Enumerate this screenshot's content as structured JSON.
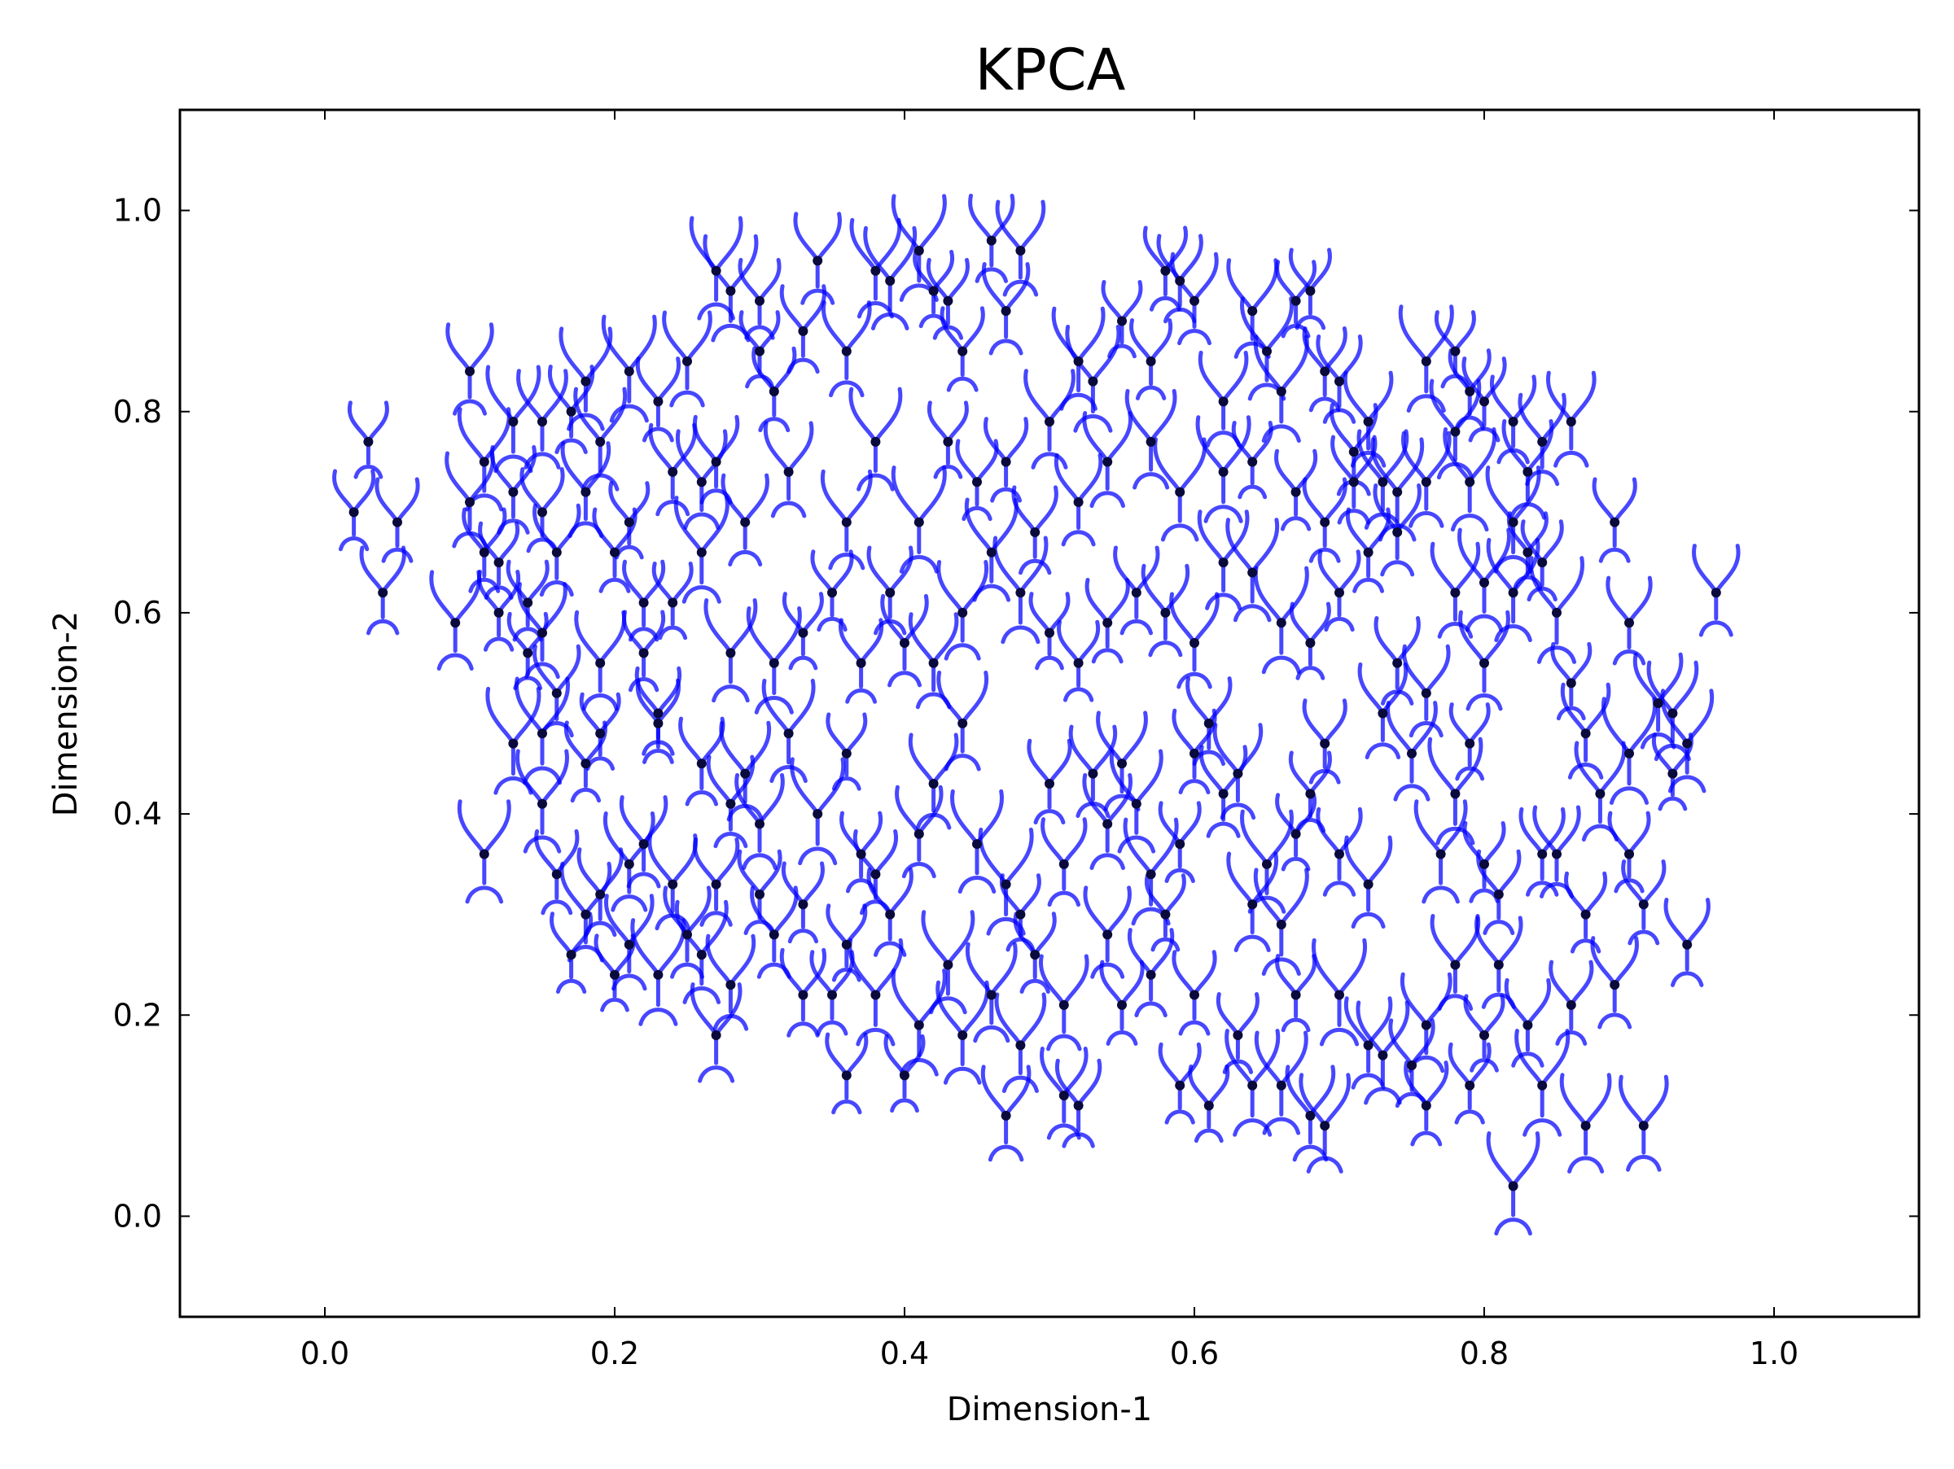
{
  "chart_data": {
    "type": "scatter",
    "title": "KPCA",
    "xlabel": "Dimension-1",
    "ylabel": "Dimension-2",
    "xlim": [
      -0.1,
      1.1
    ],
    "ylim": [
      -0.1,
      1.1
    ],
    "xticks": [
      "0.0",
      "0.2",
      "0.4",
      "0.6",
      "0.8",
      "1.0"
    ],
    "yticks": [
      "0.0",
      "0.2",
      "0.4",
      "0.6",
      "0.8",
      "1.0"
    ],
    "grid": false,
    "legend": "none",
    "marker_color": "#0a0a3c",
    "glyph_color": "#0000ff",
    "series": [
      {
        "marker": "dot-with-curved-glyph",
        "points": [
          [
            0.03,
            0.77
          ],
          [
            0.02,
            0.7
          ],
          [
            0.05,
            0.69
          ],
          [
            0.04,
            0.62
          ],
          [
            0.1,
            0.84
          ],
          [
            0.1,
            0.71
          ],
          [
            0.09,
            0.59
          ],
          [
            0.11,
            0.75
          ],
          [
            0.13,
            0.79
          ],
          [
            0.12,
            0.65
          ],
          [
            0.14,
            0.61
          ],
          [
            0.15,
            0.7
          ],
          [
            0.17,
            0.8
          ],
          [
            0.16,
            0.52
          ],
          [
            0.15,
            0.58
          ],
          [
            0.19,
            0.55
          ],
          [
            0.19,
            0.77
          ],
          [
            0.21,
            0.84
          ],
          [
            0.21,
            0.69
          ],
          [
            0.22,
            0.61
          ],
          [
            0.23,
            0.81
          ],
          [
            0.23,
            0.5
          ],
          [
            0.24,
            0.74
          ],
          [
            0.25,
            0.85
          ],
          [
            0.26,
            0.73
          ],
          [
            0.27,
            0.94
          ],
          [
            0.28,
            0.92
          ],
          [
            0.3,
            0.86
          ],
          [
            0.3,
            0.91
          ],
          [
            0.31,
            0.82
          ],
          [
            0.33,
            0.88
          ],
          [
            0.34,
            0.95
          ],
          [
            0.36,
            0.86
          ],
          [
            0.38,
            0.94
          ],
          [
            0.39,
            0.93
          ],
          [
            0.41,
            0.96
          ],
          [
            0.42,
            0.92
          ],
          [
            0.43,
            0.91
          ],
          [
            0.44,
            0.86
          ],
          [
            0.46,
            0.97
          ],
          [
            0.47,
            0.9
          ],
          [
            0.48,
            0.96
          ],
          [
            0.5,
            0.79
          ],
          [
            0.52,
            0.85
          ],
          [
            0.53,
            0.83
          ],
          [
            0.55,
            0.89
          ],
          [
            0.57,
            0.85
          ],
          [
            0.58,
            0.94
          ],
          [
            0.59,
            0.93
          ],
          [
            0.6,
            0.91
          ],
          [
            0.62,
            0.81
          ],
          [
            0.64,
            0.9
          ],
          [
            0.65,
            0.86
          ],
          [
            0.66,
            0.82
          ],
          [
            0.67,
            0.91
          ],
          [
            0.68,
            0.92
          ],
          [
            0.69,
            0.84
          ],
          [
            0.7,
            0.83
          ],
          [
            0.71,
            0.76
          ],
          [
            0.72,
            0.79
          ],
          [
            0.73,
            0.73
          ],
          [
            0.74,
            0.72
          ],
          [
            0.76,
            0.85
          ],
          [
            0.78,
            0.86
          ],
          [
            0.79,
            0.82
          ],
          [
            0.8,
            0.81
          ],
          [
            0.82,
            0.79
          ],
          [
            0.84,
            0.77
          ],
          [
            0.86,
            0.79
          ],
          [
            0.83,
            0.74
          ],
          [
            0.79,
            0.73
          ],
          [
            0.82,
            0.69
          ],
          [
            0.83,
            0.66
          ],
          [
            0.84,
            0.65
          ],
          [
            0.89,
            0.69
          ],
          [
            0.9,
            0.59
          ],
          [
            0.96,
            0.62
          ],
          [
            0.92,
            0.51
          ],
          [
            0.93,
            0.5
          ],
          [
            0.94,
            0.47
          ],
          [
            0.9,
            0.46
          ],
          [
            0.93,
            0.44
          ],
          [
            0.9,
            0.36
          ],
          [
            0.91,
            0.31
          ],
          [
            0.94,
            0.27
          ],
          [
            0.89,
            0.23
          ],
          [
            0.91,
            0.09
          ],
          [
            0.87,
            0.09
          ],
          [
            0.82,
            0.03
          ],
          [
            0.84,
            0.13
          ],
          [
            0.8,
            0.18
          ],
          [
            0.79,
            0.13
          ],
          [
            0.76,
            0.11
          ],
          [
            0.75,
            0.15
          ],
          [
            0.72,
            0.17
          ],
          [
            0.68,
            0.1
          ],
          [
            0.69,
            0.09
          ],
          [
            0.66,
            0.13
          ],
          [
            0.64,
            0.13
          ],
          [
            0.61,
            0.11
          ],
          [
            0.59,
            0.13
          ],
          [
            0.55,
            0.21
          ],
          [
            0.52,
            0.11
          ],
          [
            0.51,
            0.12
          ],
          [
            0.47,
            0.1
          ],
          [
            0.46,
            0.22
          ],
          [
            0.43,
            0.25
          ],
          [
            0.41,
            0.19
          ],
          [
            0.4,
            0.14
          ],
          [
            0.36,
            0.14
          ],
          [
            0.35,
            0.22
          ],
          [
            0.33,
            0.22
          ],
          [
            0.31,
            0.28
          ],
          [
            0.28,
            0.23
          ],
          [
            0.27,
            0.18
          ],
          [
            0.26,
            0.26
          ],
          [
            0.23,
            0.24
          ],
          [
            0.2,
            0.24
          ],
          [
            0.17,
            0.26
          ],
          [
            0.16,
            0.34
          ],
          [
            0.19,
            0.32
          ],
          [
            0.22,
            0.37
          ],
          [
            0.24,
            0.33
          ],
          [
            0.21,
            0.35
          ],
          [
            0.11,
            0.36
          ],
          [
            0.13,
            0.47
          ],
          [
            0.19,
            0.48
          ],
          [
            0.18,
            0.45
          ],
          [
            0.23,
            0.49
          ],
          [
            0.26,
            0.45
          ],
          [
            0.28,
            0.41
          ],
          [
            0.3,
            0.39
          ],
          [
            0.29,
            0.44
          ],
          [
            0.32,
            0.48
          ],
          [
            0.34,
            0.4
          ],
          [
            0.36,
            0.46
          ],
          [
            0.37,
            0.36
          ],
          [
            0.38,
            0.34
          ],
          [
            0.39,
            0.3
          ],
          [
            0.41,
            0.38
          ],
          [
            0.42,
            0.43
          ],
          [
            0.44,
            0.49
          ],
          [
            0.45,
            0.37
          ],
          [
            0.47,
            0.33
          ],
          [
            0.48,
            0.3
          ],
          [
            0.49,
            0.26
          ],
          [
            0.5,
            0.43
          ],
          [
            0.51,
            0.35
          ],
          [
            0.53,
            0.44
          ],
          [
            0.54,
            0.39
          ],
          [
            0.55,
            0.45
          ],
          [
            0.56,
            0.41
          ],
          [
            0.57,
            0.34
          ],
          [
            0.58,
            0.3
          ],
          [
            0.59,
            0.37
          ],
          [
            0.6,
            0.46
          ],
          [
            0.61,
            0.49
          ],
          [
            0.62,
            0.42
          ],
          [
            0.63,
            0.44
          ],
          [
            0.64,
            0.31
          ],
          [
            0.65,
            0.35
          ],
          [
            0.66,
            0.29
          ],
          [
            0.67,
            0.38
          ],
          [
            0.68,
            0.42
          ],
          [
            0.69,
            0.47
          ],
          [
            0.7,
            0.36
          ],
          [
            0.72,
            0.33
          ],
          [
            0.73,
            0.5
          ],
          [
            0.75,
            0.46
          ],
          [
            0.77,
            0.36
          ],
          [
            0.78,
            0.42
          ],
          [
            0.79,
            0.47
          ],
          [
            0.8,
            0.35
          ],
          [
            0.81,
            0.32
          ],
          [
            0.84,
            0.36
          ],
          [
            0.85,
            0.36
          ],
          [
            0.87,
            0.48
          ],
          [
            0.88,
            0.42
          ],
          [
            0.28,
            0.56
          ],
          [
            0.31,
            0.55
          ],
          [
            0.33,
            0.58
          ],
          [
            0.35,
            0.62
          ],
          [
            0.37,
            0.55
          ],
          [
            0.39,
            0.62
          ],
          [
            0.4,
            0.57
          ],
          [
            0.42,
            0.55
          ],
          [
            0.44,
            0.6
          ],
          [
            0.46,
            0.66
          ],
          [
            0.48,
            0.62
          ],
          [
            0.5,
            0.58
          ],
          [
            0.52,
            0.55
          ],
          [
            0.54,
            0.59
          ],
          [
            0.56,
            0.62
          ],
          [
            0.58,
            0.6
          ],
          [
            0.6,
            0.57
          ],
          [
            0.62,
            0.65
          ],
          [
            0.64,
            0.64
          ],
          [
            0.66,
            0.59
          ],
          [
            0.68,
            0.57
          ],
          [
            0.7,
            0.62
          ],
          [
            0.72,
            0.66
          ],
          [
            0.74,
            0.55
          ],
          [
            0.76,
            0.52
          ],
          [
            0.78,
            0.62
          ],
          [
            0.8,
            0.55
          ],
          [
            0.82,
            0.62
          ],
          [
            0.26,
            0.66
          ],
          [
            0.24,
            0.61
          ],
          [
            0.22,
            0.56
          ],
          [
            0.2,
            0.66
          ],
          [
            0.27,
            0.75
          ],
          [
            0.29,
            0.69
          ],
          [
            0.32,
            0.74
          ],
          [
            0.36,
            0.69
          ],
          [
            0.38,
            0.77
          ],
          [
            0.41,
            0.69
          ],
          [
            0.43,
            0.77
          ],
          [
            0.45,
            0.73
          ],
          [
            0.47,
            0.75
          ],
          [
            0.49,
            0.68
          ],
          [
            0.52,
            0.71
          ],
          [
            0.54,
            0.75
          ],
          [
            0.57,
            0.77
          ],
          [
            0.59,
            0.72
          ],
          [
            0.62,
            0.74
          ],
          [
            0.64,
            0.75
          ],
          [
            0.67,
            0.72
          ],
          [
            0.69,
            0.69
          ],
          [
            0.71,
            0.73
          ],
          [
            0.74,
            0.68
          ],
          [
            0.76,
            0.73
          ],
          [
            0.78,
            0.78
          ],
          [
            0.8,
            0.63
          ],
          [
            0.85,
            0.6
          ],
          [
            0.86,
            0.53
          ],
          [
            0.87,
            0.3
          ],
          [
            0.86,
            0.21
          ],
          [
            0.83,
            0.19
          ],
          [
            0.81,
            0.25
          ],
          [
            0.78,
            0.25
          ],
          [
            0.76,
            0.19
          ],
          [
            0.73,
            0.16
          ],
          [
            0.7,
            0.22
          ],
          [
            0.67,
            0.22
          ],
          [
            0.63,
            0.18
          ],
          [
            0.6,
            0.22
          ],
          [
            0.57,
            0.24
          ],
          [
            0.54,
            0.28
          ],
          [
            0.51,
            0.21
          ],
          [
            0.48,
            0.17
          ],
          [
            0.44,
            0.18
          ],
          [
            0.38,
            0.22
          ],
          [
            0.36,
            0.27
          ],
          [
            0.33,
            0.31
          ],
          [
            0.3,
            0.32
          ],
          [
            0.27,
            0.33
          ],
          [
            0.25,
            0.28
          ],
          [
            0.21,
            0.27
          ],
          [
            0.18,
            0.3
          ],
          [
            0.15,
            0.41
          ],
          [
            0.15,
            0.48
          ],
          [
            0.14,
            0.56
          ],
          [
            0.12,
            0.6
          ],
          [
            0.11,
            0.66
          ],
          [
            0.13,
            0.72
          ],
          [
            0.16,
            0.66
          ],
          [
            0.18,
            0.72
          ],
          [
            0.15,
            0.79
          ],
          [
            0.18,
            0.83
          ]
        ]
      }
    ]
  }
}
